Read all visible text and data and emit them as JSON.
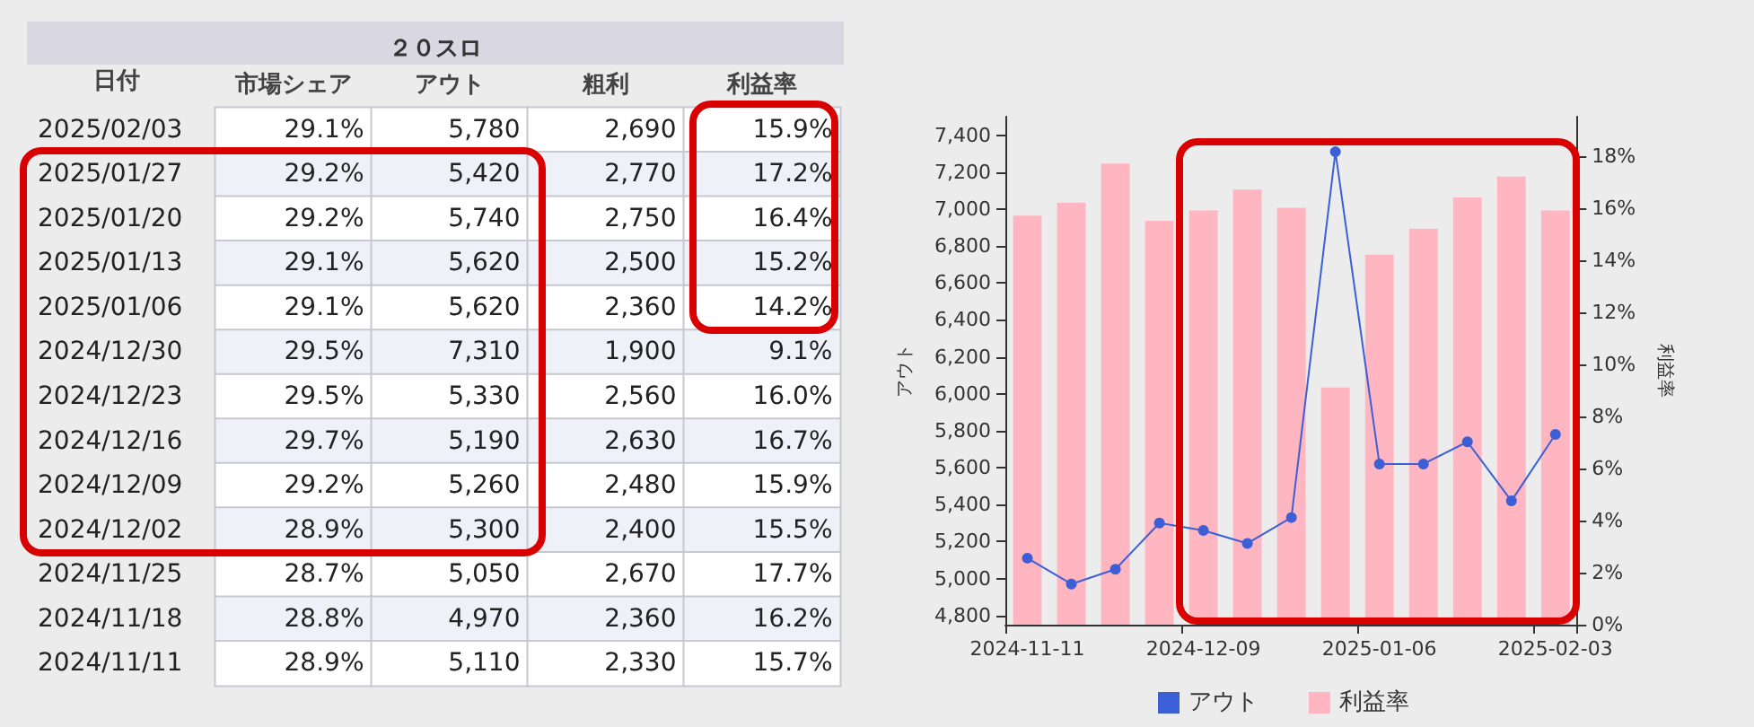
{
  "chart_data": [
    {
      "type": "heatmap",
      "title": "２０スロ",
      "ylabel": "日付",
      "categories": [
        "市場シェア",
        "アウト",
        "粗利",
        "利益率"
      ],
      "y_categories": [
        "2025/02/03",
        "2025/01/27",
        "2025/01/20",
        "2025/01/13",
        "2025/01/06",
        "2024/12/30",
        "2024/12/23",
        "2024/12/16",
        "2024/12/09",
        "2024/12/02",
        "2024/11/25",
        "2024/11/18",
        "2024/11/11"
      ],
      "cells": [
        [
          29.1,
          5780,
          2690,
          15.9
        ],
        [
          29.2,
          5420,
          2770,
          17.2
        ],
        [
          29.2,
          5740,
          2750,
          16.4
        ],
        [
          29.1,
          5620,
          2500,
          15.2
        ],
        [
          29.1,
          5620,
          2360,
          14.2
        ],
        [
          29.5,
          7310,
          1900,
          9.1
        ],
        [
          29.5,
          5330,
          2560,
          16.0
        ],
        [
          29.7,
          5190,
          2630,
          16.7
        ],
        [
          29.2,
          5260,
          2480,
          15.9
        ],
        [
          28.9,
          5300,
          2400,
          15.5
        ],
        [
          28.7,
          5050,
          2670,
          17.7
        ],
        [
          28.8,
          4970,
          2360,
          16.2
        ],
        [
          28.9,
          5110,
          2330,
          15.7
        ]
      ],
      "cell_labels": [
        [
          "29.1%",
          "5,780",
          "2,690",
          "15.9%"
        ],
        [
          "29.2%",
          "5,420",
          "2,770",
          "17.2%"
        ],
        [
          "29.2%",
          "5,740",
          "2,750",
          "16.4%"
        ],
        [
          "29.1%",
          "5,620",
          "2,500",
          "15.2%"
        ],
        [
          "29.1%",
          "5,620",
          "2,360",
          "14.2%"
        ],
        [
          "29.5%",
          "7,310",
          "1,900",
          "9.1%"
        ],
        [
          "29.5%",
          "5,330",
          "2,560",
          "16.0%"
        ],
        [
          "29.7%",
          "5,190",
          "2,630",
          "16.7%"
        ],
        [
          "29.2%",
          "5,260",
          "2,480",
          "15.9%"
        ],
        [
          "28.9%",
          "5,300",
          "2,400",
          "15.5%"
        ],
        [
          "28.7%",
          "5,050",
          "2,670",
          "17.7%"
        ],
        [
          "28.8%",
          "4,970",
          "2,360",
          "16.2%"
        ],
        [
          "28.9%",
          "5,110",
          "2,330",
          "15.7%"
        ]
      ]
    },
    {
      "type": "bar",
      "ylabel": "アウト",
      "y2label": "利益率",
      "categories": [
        "2024-11-11",
        null,
        null,
        null,
        "2024-12-09",
        null,
        null,
        null,
        "2025-01-06",
        null,
        null,
        null,
        "2025-02-03"
      ],
      "series": [
        {
          "name": "アウト",
          "type": "line",
          "color": "#3d5fd6",
          "values": [
            5110,
            4970,
            5050,
            5300,
            5260,
            5190,
            5330,
            7310,
            5620,
            5620,
            5740,
            5420,
            5780
          ]
        },
        {
          "name": "利益率",
          "type": "bar",
          "axis": "y2",
          "color": "#ffb6c1",
          "values": [
            15.7,
            16.2,
            17.7,
            15.5,
            15.9,
            16.7,
            16.0,
            9.1,
            14.2,
            15.2,
            16.4,
            17.2,
            15.9
          ]
        }
      ],
      "ylim": [
        4750,
        7500
      ],
      "yticks": [
        {
          "value": 4800,
          "label": "4,800"
        },
        {
          "value": 5000,
          "label": "5,000"
        },
        {
          "value": 5200,
          "label": "5,200"
        },
        {
          "value": 5400,
          "label": "5,400"
        },
        {
          "value": 5600,
          "label": "5,600"
        },
        {
          "value": 5800,
          "label": "5,800"
        },
        {
          "value": 6000,
          "label": "6,000"
        },
        {
          "value": 6200,
          "label": "6,200"
        },
        {
          "value": 6400,
          "label": "6,400"
        },
        {
          "value": 6600,
          "label": "6,600"
        },
        {
          "value": 6800,
          "label": "6,800"
        },
        {
          "value": 7000,
          "label": "7,000"
        },
        {
          "value": 7200,
          "label": "7,200"
        },
        {
          "value": 7400,
          "label": "7,400"
        }
      ],
      "y2lim": [
        0,
        19.5
      ],
      "y2ticks": [
        {
          "value": 0,
          "label": "0%"
        },
        {
          "value": 2,
          "label": "2%"
        },
        {
          "value": 4,
          "label": "4%"
        },
        {
          "value": 6,
          "label": "6%"
        },
        {
          "value": 8,
          "label": "8%"
        },
        {
          "value": 10,
          "label": "10%"
        },
        {
          "value": 12,
          "label": "12%"
        },
        {
          "value": 14,
          "label": "14%"
        },
        {
          "value": 16,
          "label": "16%"
        },
        {
          "value": 18,
          "label": "18%"
        }
      ],
      "grid": false,
      "legend": "bottom",
      "marker": "circle",
      "line_style": "solid"
    }
  ]
}
